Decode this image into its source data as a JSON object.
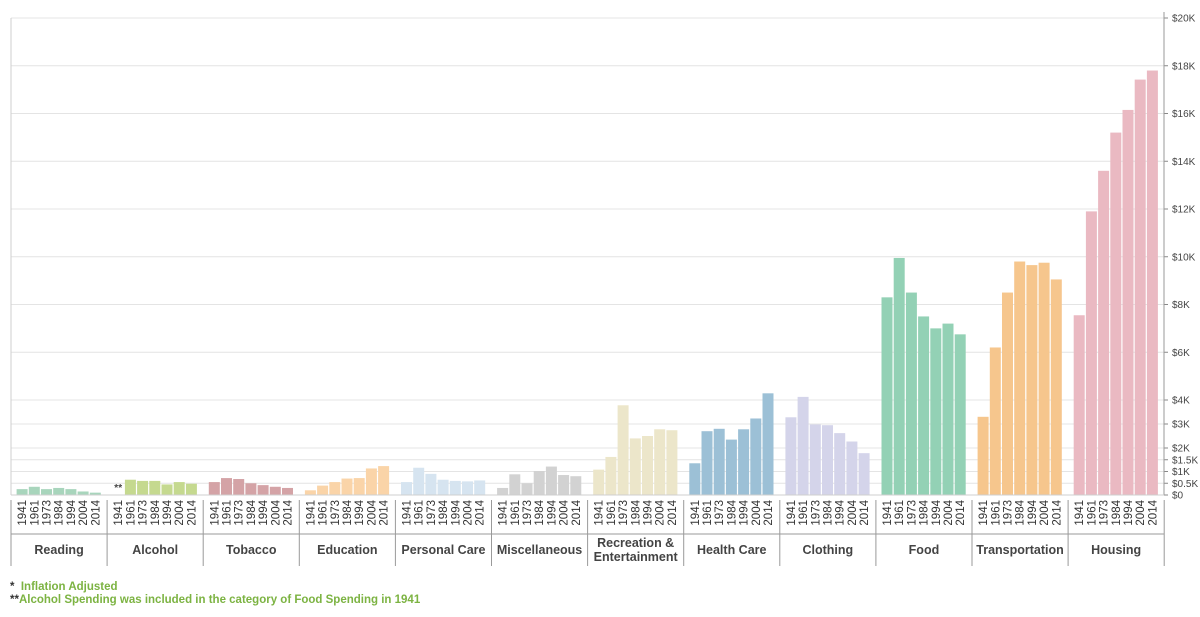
{
  "chart_data": {
    "type": "bar",
    "title": "",
    "xlabel": "",
    "ylabel": "",
    "y_ticks": [
      {
        "value": 0,
        "label": "$0"
      },
      {
        "value": 500,
        "label": "$0.5K"
      },
      {
        "value": 1000,
        "label": "$1K"
      },
      {
        "value": 1500,
        "label": "$1.5K"
      },
      {
        "value": 2000,
        "label": "$2K"
      },
      {
        "value": 3000,
        "label": "$3K"
      },
      {
        "value": 4000,
        "label": "$4K"
      },
      {
        "value": 6000,
        "label": "$6K"
      },
      {
        "value": 8000,
        "label": "$8K"
      },
      {
        "value": 10000,
        "label": "$10K"
      },
      {
        "value": 12000,
        "label": "$12K"
      },
      {
        "value": 14000,
        "label": "$14K"
      },
      {
        "value": 16000,
        "label": "$16K"
      },
      {
        "value": 18000,
        "label": "$18K"
      },
      {
        "value": 20000,
        "label": "$20K"
      }
    ],
    "ylim": [
      0,
      20000
    ],
    "y_axis_position": "right",
    "grid": true,
    "years": [
      "1941",
      "1961",
      "1973",
      "1984",
      "1994",
      "2004",
      "2014"
    ],
    "categories": [
      {
        "name": "Reading",
        "color": "#a8d5bc",
        "values": [
          250,
          350,
          250,
          300,
          250,
          150,
          100
        ],
        "marker": ""
      },
      {
        "name": "Alcohol",
        "color": "#c5d98f",
        "values": [
          null,
          650,
          600,
          600,
          450,
          550,
          480
        ],
        "marker": "**"
      },
      {
        "name": "Tobacco",
        "color": "#d4a3a6",
        "values": [
          550,
          720,
          680,
          500,
          420,
          350,
          300
        ],
        "marker": ""
      },
      {
        "name": "Education",
        "color": "#fad4a8",
        "values": [
          200,
          400,
          550,
          700,
          720,
          1130,
          1230
        ],
        "marker": ""
      },
      {
        "name": "Personal Care",
        "color": "#d6e4f0",
        "values": [
          550,
          1160,
          900,
          650,
          600,
          580,
          620
        ],
        "marker": ""
      },
      {
        "name": "Miscellaneous",
        "color": "#d2d2d2",
        "values": [
          300,
          880,
          500,
          1020,
          1210,
          850,
          800
        ],
        "marker": ""
      },
      {
        "name": "Recreation & Entertainment",
        "color": "#ece6ca",
        "values": [
          1080,
          1620,
          3780,
          2400,
          2500,
          2780,
          2740
        ],
        "marker": ""
      },
      {
        "name": "Health Care",
        "color": "#9cc0d6",
        "values": [
          1350,
          2700,
          2800,
          2350,
          2780,
          3230,
          4280
        ],
        "marker": ""
      },
      {
        "name": "Clothing",
        "color": "#d4d4ea",
        "values": [
          3280,
          4130,
          2980,
          2950,
          2620,
          2270,
          1780
        ],
        "marker": ""
      },
      {
        "name": "Food",
        "color": "#93d1b5",
        "values": [
          8300,
          9950,
          8500,
          7500,
          7000,
          7200,
          6750
        ],
        "marker": ""
      },
      {
        "name": "Transportation",
        "color": "#f6c68d",
        "values": [
          3300,
          6200,
          8500,
          9800,
          9650,
          9750,
          9050
        ],
        "marker": ""
      },
      {
        "name": "Housing",
        "color": "#eab9c2",
        "values": [
          7550,
          11900,
          13600,
          15200,
          16150,
          17420,
          17800
        ],
        "marker": ""
      }
    ]
  },
  "footnotes": [
    {
      "mark": "* ",
      "text": " Inflation Adjusted"
    },
    {
      "mark": "**",
      "text": "Alcohol Spending was included in the category of Food Spending in 1941"
    }
  ]
}
